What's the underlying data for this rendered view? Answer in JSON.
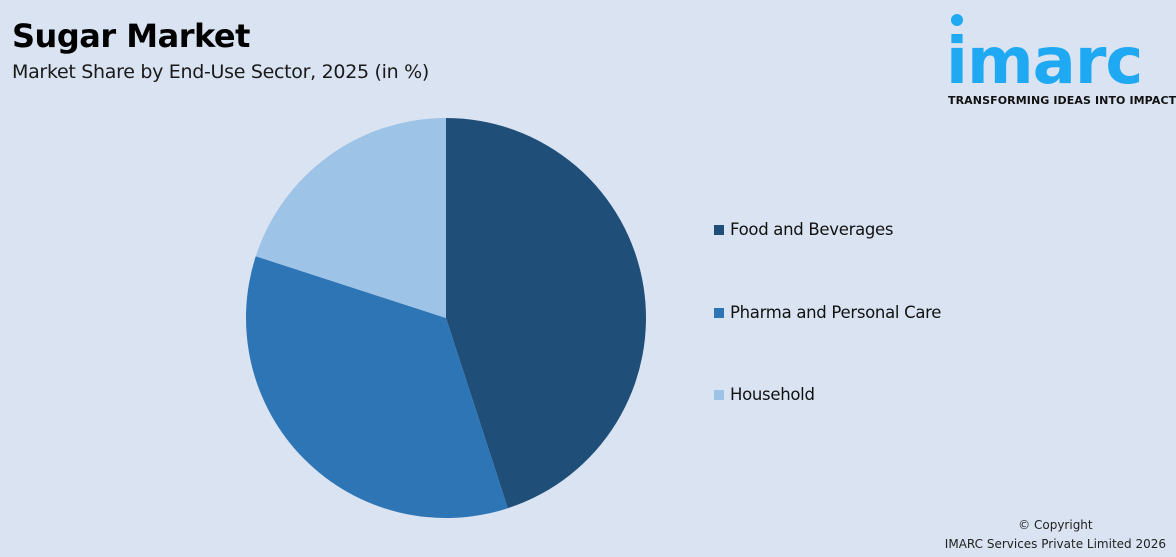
{
  "header": {
    "title": "Sugar Market",
    "subtitle": "Market Share by End-Use Sector, 2025 (in %)"
  },
  "logo": {
    "wordmark": "imarc",
    "tagline": "TRANSFORMING IDEAS INTO IMPACT",
    "color": "#1fa9f2"
  },
  "legend": {
    "items": [
      {
        "label": "Food and Beverages",
        "color": "#1f4e79"
      },
      {
        "label": "Pharma and Personal Care",
        "color": "#2e75b6"
      },
      {
        "label": "Household",
        "color": "#9dc3e6"
      }
    ]
  },
  "footer": {
    "copyright_line1": "© Copyright",
    "copyright_line2": "IMARC Services Private Limited 2026"
  },
  "chart_data": {
    "type": "pie",
    "title": "Sugar Market",
    "subtitle": "Market Share by End-Use Sector, 2025 (in %)",
    "categories": [
      "Food and Beverages",
      "Pharma and Personal Care",
      "Household"
    ],
    "values": [
      45,
      35,
      20
    ],
    "colors": [
      "#1f4e79",
      "#2e75b6",
      "#9dc3e6"
    ],
    "start_angle": "12 o'clock, clockwise",
    "legend_position": "right",
    "data_labels": false
  }
}
